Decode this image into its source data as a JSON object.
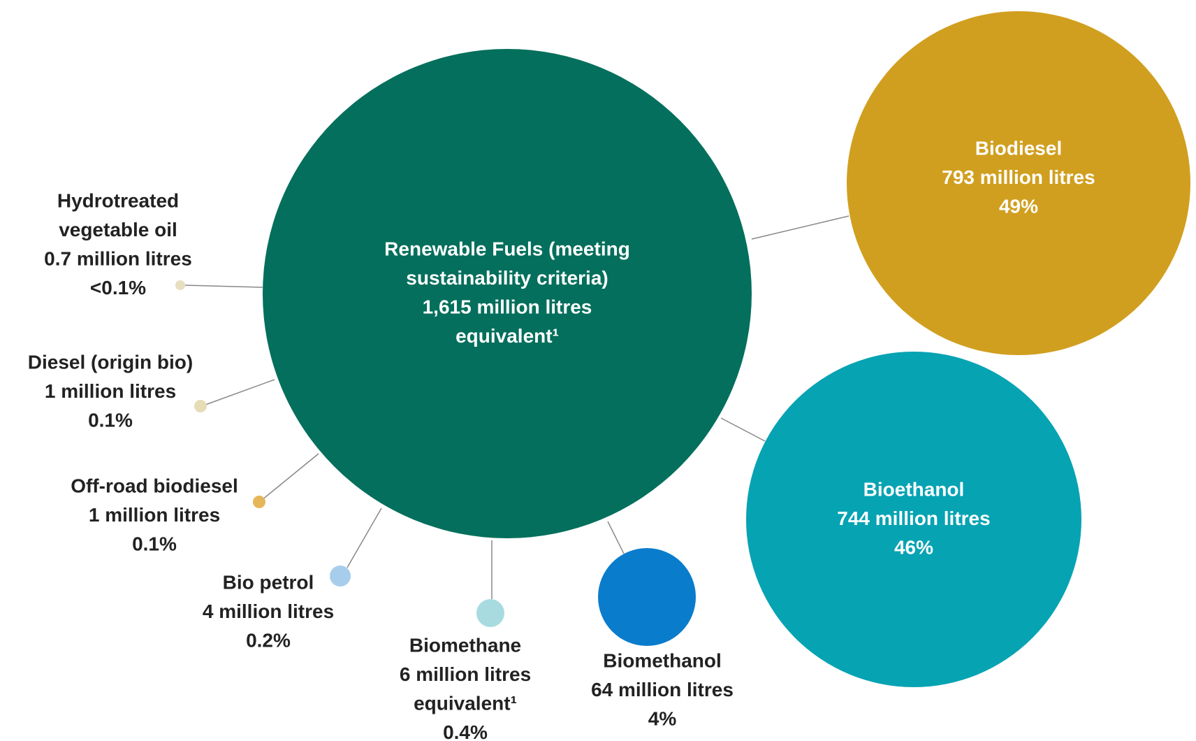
{
  "nodes": [
    {
      "lines": [
        "Renewable Fuels (meeting",
        "sustainability criteria)",
        "1,615 million litres",
        "equivalent¹"
      ]
    },
    {
      "lines": [
        "Biodiesel",
        "793 million litres",
        "49%"
      ]
    },
    {
      "lines": [
        "Bioethanol",
        "744 million litres",
        "46%"
      ]
    },
    {
      "lines": [
        "Biomethanol",
        "64 million litres",
        "4%"
      ]
    },
    {
      "lines": [
        "Biomethane",
        "6 million litres",
        "equivalent¹",
        "0.4%"
      ]
    },
    {
      "lines": [
        "Bio petrol",
        "4 million litres",
        "0.2%"
      ]
    },
    {
      "lines": [
        "Off-road biodiesel",
        "1 million litres",
        "0.1%"
      ]
    },
    {
      "lines": [
        "Diesel (origin bio)",
        "1 million litres",
        "0.1%"
      ]
    },
    {
      "lines": [
        "Hydrotreated",
        "vegetable oil",
        "0.7 million litres",
        "<0.1%"
      ]
    }
  ]
}
